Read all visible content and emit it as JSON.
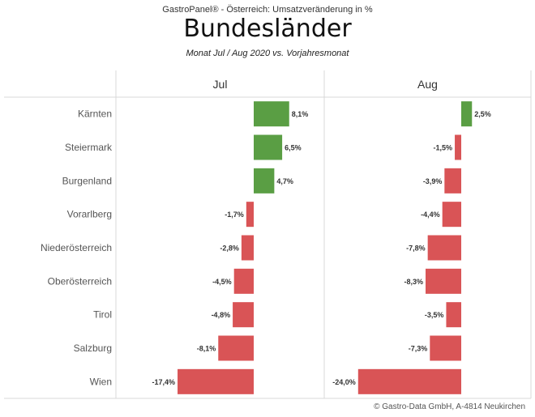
{
  "header": {
    "top_title": "GastroPanel® - Österreich: Umsatzveränderung in %",
    "title": "Bundesländer",
    "subtitle": "Monat Jul / Aug 2020 vs. Vorjahresmonat"
  },
  "footer": {
    "copyright": "© Gastro-Data GmbH, A-4814 Neukirchen"
  },
  "colors": {
    "positive": "#5a9e44",
    "negative": "#d95456",
    "grid": "#d9d9d9"
  },
  "chart_data": {
    "type": "bar",
    "orientation": "horizontal",
    "categories": [
      "Kärnten",
      "Steiermark",
      "Burgenland",
      "Vorarlberg",
      "Niederösterreich",
      "Oberösterreich",
      "Tirol",
      "Salzburg",
      "Wien"
    ],
    "series": [
      {
        "name": "Jul",
        "values": [
          8.1,
          6.5,
          4.7,
          -1.7,
          -2.8,
          -4.5,
          -4.8,
          -8.1,
          -17.4
        ],
        "labels": [
          "8,1%",
          "6,5%",
          "4,7%",
          "-1,7%",
          "-2,8%",
          "-4,5%",
          "-4,8%",
          "-8,1%",
          "-17,4%"
        ]
      },
      {
        "name": "Aug",
        "values": [
          2.5,
          -1.5,
          -3.9,
          -4.4,
          -7.8,
          -8.3,
          -3.5,
          -7.3,
          -24.0
        ],
        "labels": [
          "2,5%",
          "-1,5%",
          "-3,9%",
          "-4,4%",
          "-7,8%",
          "-8,3%",
          "-3,5%",
          "-7,3%",
          "-24,0%"
        ]
      }
    ],
    "grid": false,
    "legend": "none"
  }
}
